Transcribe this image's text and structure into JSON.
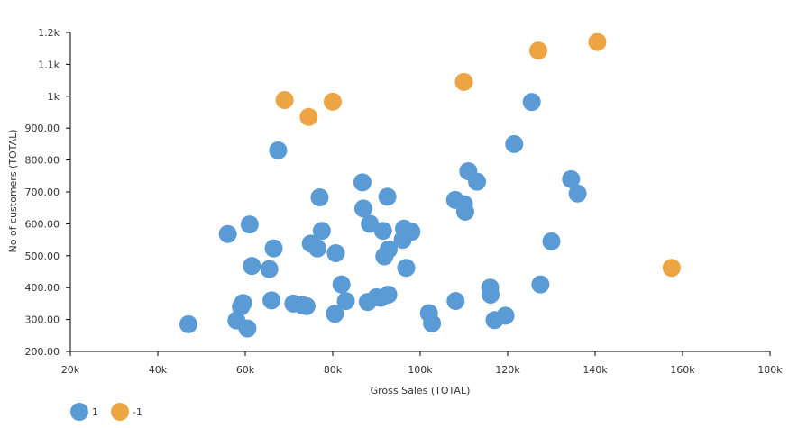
{
  "chart_data": {
    "type": "scatter",
    "xlabel": "Gross Sales (TOTAL)",
    "ylabel": "No of customers (TOTAL)",
    "xlim": [
      20000,
      180000
    ],
    "ylim": [
      200,
      1200
    ],
    "grid": false,
    "legend_position": "bottom-left",
    "x_ticks": [
      {
        "value": 20000,
        "label": "20k"
      },
      {
        "value": 40000,
        "label": "40k"
      },
      {
        "value": 60000,
        "label": "60k"
      },
      {
        "value": 80000,
        "label": "80k"
      },
      {
        "value": 100000,
        "label": "100k"
      },
      {
        "value": 120000,
        "label": "120k"
      },
      {
        "value": 140000,
        "label": "140k"
      },
      {
        "value": 160000,
        "label": "160k"
      },
      {
        "value": 180000,
        "label": "180k"
      }
    ],
    "y_ticks": [
      {
        "value": 200,
        "label": "200.00"
      },
      {
        "value": 300,
        "label": "300.00"
      },
      {
        "value": 400,
        "label": "400.00"
      },
      {
        "value": 500,
        "label": "500.00"
      },
      {
        "value": 600,
        "label": "600.00"
      },
      {
        "value": 700,
        "label": "700.00"
      },
      {
        "value": 800,
        "label": "800.00"
      },
      {
        "value": 900,
        "label": "900.00"
      },
      {
        "value": 1000,
        "label": "1k"
      },
      {
        "value": 1100,
        "label": "1.1k"
      },
      {
        "value": 1200,
        "label": "1.2k"
      }
    ],
    "series": [
      {
        "name": "1",
        "color": "#5b9bd5",
        "points": [
          {
            "x": 47000,
            "y": 285
          },
          {
            "x": 56000,
            "y": 568
          },
          {
            "x": 58000,
            "y": 297
          },
          {
            "x": 59000,
            "y": 340
          },
          {
            "x": 59500,
            "y": 352
          },
          {
            "x": 60500,
            "y": 272
          },
          {
            "x": 61000,
            "y": 598
          },
          {
            "x": 61500,
            "y": 468
          },
          {
            "x": 65500,
            "y": 458
          },
          {
            "x": 66000,
            "y": 360
          },
          {
            "x": 66500,
            "y": 523
          },
          {
            "x": 67500,
            "y": 830
          },
          {
            "x": 71000,
            "y": 350
          },
          {
            "x": 73000,
            "y": 345
          },
          {
            "x": 74000,
            "y": 342
          },
          {
            "x": 75000,
            "y": 538
          },
          {
            "x": 76500,
            "y": 523
          },
          {
            "x": 77000,
            "y": 683
          },
          {
            "x": 77500,
            "y": 578
          },
          {
            "x": 80500,
            "y": 318
          },
          {
            "x": 80700,
            "y": 508
          },
          {
            "x": 82000,
            "y": 410
          },
          {
            "x": 83000,
            "y": 358
          },
          {
            "x": 86800,
            "y": 730
          },
          {
            "x": 87000,
            "y": 648
          },
          {
            "x": 88000,
            "y": 355
          },
          {
            "x": 88500,
            "y": 600
          },
          {
            "x": 90000,
            "y": 370
          },
          {
            "x": 91000,
            "y": 368
          },
          {
            "x": 91500,
            "y": 578
          },
          {
            "x": 91800,
            "y": 498
          },
          {
            "x": 92500,
            "y": 685
          },
          {
            "x": 92700,
            "y": 378
          },
          {
            "x": 92800,
            "y": 520
          },
          {
            "x": 96000,
            "y": 550
          },
          {
            "x": 96300,
            "y": 585
          },
          {
            "x": 96800,
            "y": 462
          },
          {
            "x": 98000,
            "y": 575
          },
          {
            "x": 102000,
            "y": 320
          },
          {
            "x": 102700,
            "y": 288
          },
          {
            "x": 108000,
            "y": 675
          },
          {
            "x": 108100,
            "y": 358
          },
          {
            "x": 110000,
            "y": 662
          },
          {
            "x": 110300,
            "y": 638
          },
          {
            "x": 111000,
            "y": 765
          },
          {
            "x": 113000,
            "y": 732
          },
          {
            "x": 116000,
            "y": 400
          },
          {
            "x": 116100,
            "y": 378
          },
          {
            "x": 117000,
            "y": 298
          },
          {
            "x": 119500,
            "y": 312
          },
          {
            "x": 121500,
            "y": 850
          },
          {
            "x": 125500,
            "y": 982
          },
          {
            "x": 127500,
            "y": 410
          },
          {
            "x": 130000,
            "y": 545
          },
          {
            "x": 134500,
            "y": 740
          },
          {
            "x": 136000,
            "y": 695
          }
        ]
      },
      {
        "name": "-1",
        "color": "#eda544",
        "points": [
          {
            "x": 69000,
            "y": 988
          },
          {
            "x": 74500,
            "y": 935
          },
          {
            "x": 80000,
            "y": 983
          },
          {
            "x": 110000,
            "y": 1045
          },
          {
            "x": 127000,
            "y": 1143
          },
          {
            "x": 140500,
            "y": 1170
          },
          {
            "x": 157500,
            "y": 462
          }
        ]
      }
    ]
  }
}
